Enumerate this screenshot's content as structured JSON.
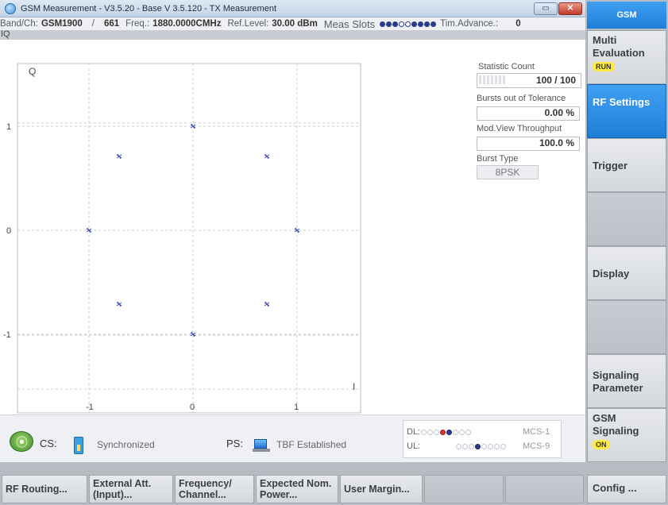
{
  "window": {
    "title": "GSM Measurement  - V3.5.20 - Base V 3.5.120 - TX Measurement"
  },
  "info": {
    "band_ch_label": "Band/Ch:",
    "band": "GSM1900",
    "channel": "661",
    "freq_label": "Freq.:",
    "freq": "1880.0000CMHz",
    "ref_level_label": "Ref.Level:",
    "ref_level": "30.00 dBm",
    "meas_slots_label": "Meas Slots",
    "meas_slots": [
      1,
      1,
      1,
      0,
      0,
      1,
      1,
      1,
      1
    ],
    "tim_advance_label": "Tim.Advance.:",
    "tim_advance": "0"
  },
  "view_label": "IQ",
  "diagram": {
    "q_label": "Q",
    "i_label": "I",
    "y_ticks": [
      "1",
      "0",
      "-1"
    ],
    "x_ticks": [
      "-1",
      "0",
      "1"
    ],
    "points": [
      [
        0,
        1
      ],
      [
        0.71,
        0.71
      ],
      [
        1,
        0
      ],
      [
        0.71,
        -0.71
      ],
      [
        0,
        -1
      ],
      [
        -0.71,
        -0.71
      ],
      [
        -1,
        0
      ],
      [
        -0.71,
        0.71
      ]
    ],
    "point_color": "#3a4bb0"
  },
  "stats": {
    "statistic_count_label": "Statistic Count",
    "statistic_count": "100 / 100",
    "bursts_oot_label": "Bursts out of Tolerance",
    "bursts_oot": "0.00  %",
    "mod_view_label": "Mod.View Throughput",
    "mod_view": "100.0  %",
    "burst_type_label": "Burst Type",
    "burst_type": "8PSK"
  },
  "softkeys": {
    "header": "GSM",
    "multi_evaluation": "Multi Evaluation",
    "run_badge": "RUN",
    "rf_settings": "RF Settings",
    "trigger": "Trigger",
    "display": "Display",
    "signaling_parameter": "Signaling Parameter",
    "gsm_signaling": "GSM Signaling",
    "on_badge": "ON",
    "config": "Config ..."
  },
  "status": {
    "cs_label": "CS:",
    "cs_state": "Synchronized",
    "ps_label": "PS:",
    "ps_state": "TBF Established",
    "dl_label": "DL:",
    "ul_label": "UL:",
    "dl_mcs": "MCS-1",
    "ul_mcs": "MCS-9"
  },
  "bottom_keys": {
    "rf_routing": "RF Routing...",
    "external_att": "External Att. (Input)...",
    "frequency_channel": "Frequency/ Channel...",
    "expected_power": "Expected Nom. Power...",
    "user_margin": "User Margin..."
  }
}
